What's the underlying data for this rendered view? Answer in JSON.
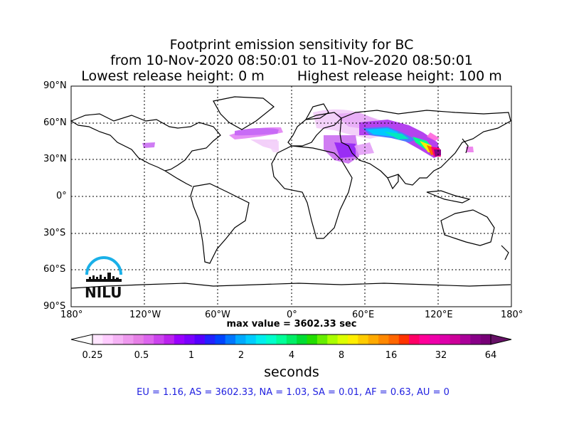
{
  "title": {
    "line1": "Footprint emission sensitivity for BC",
    "line2": "from 10-Nov-2020 08:50:01 to 11-Nov-2020 08:50:01",
    "line3_left": "Lowest release height: 0 m",
    "line3_right": "Highest release height: 100 m"
  },
  "lat_labels": [
    "90°N",
    "60°N",
    "30°N",
    "0°",
    "30°S",
    "60°S",
    "90°S"
  ],
  "lon_labels": [
    "180°",
    "120°W",
    "60°W",
    "0°",
    "60°E",
    "120°E",
    "180°"
  ],
  "max_value": "max value = 3602.33 sec",
  "colorbar": {
    "ticks": [
      "0.25",
      "0.5",
      "1",
      "2",
      "4",
      "8",
      "16",
      "32",
      "64"
    ],
    "label": "seconds",
    "colors": [
      "#ffe6ff",
      "#ffccff",
      "#f5b3f5",
      "#ee99ee",
      "#e680e6",
      "#dd66ee",
      "#cc44ee",
      "#bb22ee",
      "#9900ff",
      "#7a00ff",
      "#5500ff",
      "#2222ff",
      "#0044ff",
      "#0077ff",
      "#00aaff",
      "#00ccff",
      "#00eeee",
      "#00ffcc",
      "#00ff99",
      "#00ee66",
      "#00dd33",
      "#22dd00",
      "#66ee00",
      "#aaff00",
      "#ddff00",
      "#ffee00",
      "#ffcc00",
      "#ffaa00",
      "#ff8800",
      "#ff6600",
      "#ff3300",
      "#ff0066",
      "#ff0099",
      "#ee00aa",
      "#dd00aa",
      "#cc0099",
      "#aa0099",
      "#880088",
      "#770077"
    ]
  },
  "stats": "EU = 1.16,  AS = 3602.33,  NA = 1.03,  SA = 0.01,  AF = 0.63,  AU = 0",
  "logo": {
    "text": "NILU",
    "color": "#1ab0e8"
  }
}
